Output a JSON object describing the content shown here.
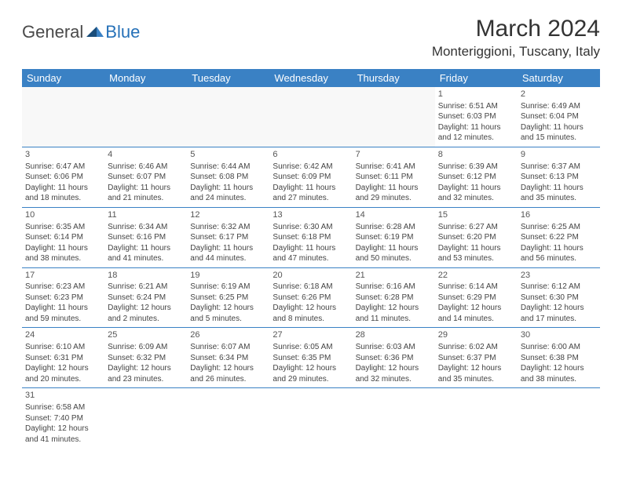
{
  "logo": {
    "part1": "General",
    "part2": "Blue"
  },
  "title": "March 2024",
  "location": "Monteriggioni, Tuscany, Italy",
  "colors": {
    "header_bg": "#3a81c4",
    "header_text": "#ffffff",
    "cell_border": "#3a81c4",
    "text": "#444444",
    "logo_blue": "#2671b8",
    "logo_dark": "#1a4d7a"
  },
  "days_of_week": [
    "Sunday",
    "Monday",
    "Tuesday",
    "Wednesday",
    "Thursday",
    "Friday",
    "Saturday"
  ],
  "fonts": {
    "title_size_pt": 22,
    "location_size_pt": 13,
    "dow_size_pt": 10,
    "cell_size_pt": 8
  },
  "weeks": [
    [
      null,
      null,
      null,
      null,
      null,
      {
        "n": "1",
        "sunrise": "6:51 AM",
        "sunset": "6:03 PM",
        "daylight": "11 hours and 12 minutes."
      },
      {
        "n": "2",
        "sunrise": "6:49 AM",
        "sunset": "6:04 PM",
        "daylight": "11 hours and 15 minutes."
      }
    ],
    [
      {
        "n": "3",
        "sunrise": "6:47 AM",
        "sunset": "6:06 PM",
        "daylight": "11 hours and 18 minutes."
      },
      {
        "n": "4",
        "sunrise": "6:46 AM",
        "sunset": "6:07 PM",
        "daylight": "11 hours and 21 minutes."
      },
      {
        "n": "5",
        "sunrise": "6:44 AM",
        "sunset": "6:08 PM",
        "daylight": "11 hours and 24 minutes."
      },
      {
        "n": "6",
        "sunrise": "6:42 AM",
        "sunset": "6:09 PM",
        "daylight": "11 hours and 27 minutes."
      },
      {
        "n": "7",
        "sunrise": "6:41 AM",
        "sunset": "6:11 PM",
        "daylight": "11 hours and 29 minutes."
      },
      {
        "n": "8",
        "sunrise": "6:39 AM",
        "sunset": "6:12 PM",
        "daylight": "11 hours and 32 minutes."
      },
      {
        "n": "9",
        "sunrise": "6:37 AM",
        "sunset": "6:13 PM",
        "daylight": "11 hours and 35 minutes."
      }
    ],
    [
      {
        "n": "10",
        "sunrise": "6:35 AM",
        "sunset": "6:14 PM",
        "daylight": "11 hours and 38 minutes."
      },
      {
        "n": "11",
        "sunrise": "6:34 AM",
        "sunset": "6:16 PM",
        "daylight": "11 hours and 41 minutes."
      },
      {
        "n": "12",
        "sunrise": "6:32 AM",
        "sunset": "6:17 PM",
        "daylight": "11 hours and 44 minutes."
      },
      {
        "n": "13",
        "sunrise": "6:30 AM",
        "sunset": "6:18 PM",
        "daylight": "11 hours and 47 minutes."
      },
      {
        "n": "14",
        "sunrise": "6:28 AM",
        "sunset": "6:19 PM",
        "daylight": "11 hours and 50 minutes."
      },
      {
        "n": "15",
        "sunrise": "6:27 AM",
        "sunset": "6:20 PM",
        "daylight": "11 hours and 53 minutes."
      },
      {
        "n": "16",
        "sunrise": "6:25 AM",
        "sunset": "6:22 PM",
        "daylight": "11 hours and 56 minutes."
      }
    ],
    [
      {
        "n": "17",
        "sunrise": "6:23 AM",
        "sunset": "6:23 PM",
        "daylight": "11 hours and 59 minutes."
      },
      {
        "n": "18",
        "sunrise": "6:21 AM",
        "sunset": "6:24 PM",
        "daylight": "12 hours and 2 minutes."
      },
      {
        "n": "19",
        "sunrise": "6:19 AM",
        "sunset": "6:25 PM",
        "daylight": "12 hours and 5 minutes."
      },
      {
        "n": "20",
        "sunrise": "6:18 AM",
        "sunset": "6:26 PM",
        "daylight": "12 hours and 8 minutes."
      },
      {
        "n": "21",
        "sunrise": "6:16 AM",
        "sunset": "6:28 PM",
        "daylight": "12 hours and 11 minutes."
      },
      {
        "n": "22",
        "sunrise": "6:14 AM",
        "sunset": "6:29 PM",
        "daylight": "12 hours and 14 minutes."
      },
      {
        "n": "23",
        "sunrise": "6:12 AM",
        "sunset": "6:30 PM",
        "daylight": "12 hours and 17 minutes."
      }
    ],
    [
      {
        "n": "24",
        "sunrise": "6:10 AM",
        "sunset": "6:31 PM",
        "daylight": "12 hours and 20 minutes."
      },
      {
        "n": "25",
        "sunrise": "6:09 AM",
        "sunset": "6:32 PM",
        "daylight": "12 hours and 23 minutes."
      },
      {
        "n": "26",
        "sunrise": "6:07 AM",
        "sunset": "6:34 PM",
        "daylight": "12 hours and 26 minutes."
      },
      {
        "n": "27",
        "sunrise": "6:05 AM",
        "sunset": "6:35 PM",
        "daylight": "12 hours and 29 minutes."
      },
      {
        "n": "28",
        "sunrise": "6:03 AM",
        "sunset": "6:36 PM",
        "daylight": "12 hours and 32 minutes."
      },
      {
        "n": "29",
        "sunrise": "6:02 AM",
        "sunset": "6:37 PM",
        "daylight": "12 hours and 35 minutes."
      },
      {
        "n": "30",
        "sunrise": "6:00 AM",
        "sunset": "6:38 PM",
        "daylight": "12 hours and 38 minutes."
      }
    ],
    [
      {
        "n": "31",
        "sunrise": "6:58 AM",
        "sunset": "7:40 PM",
        "daylight": "12 hours and 41 minutes."
      },
      null,
      null,
      null,
      null,
      null,
      null
    ]
  ],
  "labels": {
    "sunrise": "Sunrise:",
    "sunset": "Sunset:",
    "daylight": "Daylight:"
  }
}
